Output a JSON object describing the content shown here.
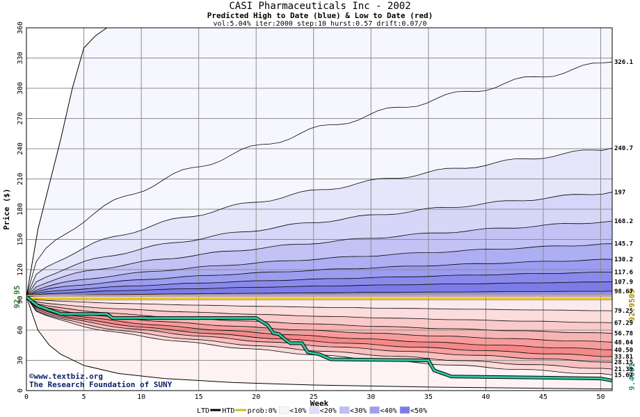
{
  "title": "CASI Pharmaceuticals Inc - 2002",
  "subtitle": "Predicted High to Date (blue) &  Low to Date (red)",
  "params": "vol:5.04% iter:2000 step:10 hurst:0.57 drift:0.07/0",
  "watermark": [
    "©www.textbiz.org",
    "The Research Foundation of SUNY"
  ],
  "colors": {
    "background": "#ffffff",
    "grid": "#8c8c8c",
    "htd_line": "#2ec7a0",
    "prob_line": "#e5b800",
    "start_label": "#2d7a36",
    "end_label": "#a88a00",
    "low_end_label": "#1f9a82"
  },
  "chart_data": {
    "type": "area",
    "xlabel": "Week",
    "ylabel": "Price ($)",
    "xlim": [
      0,
      51
    ],
    "ylim": [
      0,
      360
    ],
    "xticks": [
      0,
      5,
      10,
      15,
      20,
      25,
      30,
      35,
      40,
      45,
      50
    ],
    "yticks": [
      0,
      30,
      60,
      90,
      120,
      150,
      180,
      210,
      240,
      270,
      300,
      330,
      360
    ],
    "grid": true,
    "start_price": 92.95,
    "start_label": "92.95",
    "prob_line_value": 92.9509,
    "prob_line_label": "92.9509",
    "ltd_end_label": "9.4601",
    "high_band_labels": [
      "326.1",
      "240.7",
      "197",
      "168.2",
      "145.7",
      "130.2",
      "117.6",
      "107.9",
      "98.67"
    ],
    "high_band_values": [
      326.1,
      240.7,
      197,
      168.2,
      145.7,
      130.2,
      117.6,
      107.9,
      98.67
    ],
    "low_band_labels": [
      "79.25",
      "67.29",
      "56.78",
      "48.04",
      "40.50",
      "33.81",
      "28.15",
      "21.39",
      "15.62"
    ],
    "low_band_values": [
      79.25,
      67.29,
      56.78,
      48.04,
      40.5,
      33.81,
      28.15,
      21.39,
      15.62
    ],
    "max_envelope": [
      [
        0,
        92.95
      ],
      [
        1,
        160
      ],
      [
        2,
        205
      ],
      [
        3,
        250
      ],
      [
        4,
        300
      ],
      [
        5,
        340
      ],
      [
        6,
        352
      ],
      [
        7,
        360
      ]
    ],
    "min_envelope": [
      [
        0,
        92.95
      ],
      [
        1,
        60
      ],
      [
        2,
        45
      ],
      [
        3,
        36
      ],
      [
        5,
        25
      ],
      [
        8,
        17
      ],
      [
        12,
        12
      ],
      [
        18,
        8
      ],
      [
        25,
        5.5
      ],
      [
        35,
        3.5
      ],
      [
        51,
        1.5
      ]
    ],
    "ltd_series": {
      "name": "HTD",
      "points": [
        [
          0,
          92.95
        ],
        [
          1,
          84
        ],
        [
          2,
          80
        ],
        [
          3,
          76
        ],
        [
          7,
          76
        ],
        [
          7.5,
          72
        ],
        [
          20,
          72
        ],
        [
          21,
          65
        ],
        [
          21.5,
          57
        ],
        [
          22,
          56
        ],
        [
          22.5,
          51
        ],
        [
          23,
          47
        ],
        [
          24,
          47
        ],
        [
          24.5,
          38
        ],
        [
          25.5,
          36
        ],
        [
          26.5,
          31
        ],
        [
          35,
          30
        ],
        [
          35.5,
          20
        ],
        [
          37,
          14
        ],
        [
          44,
          13
        ],
        [
          50,
          12
        ],
        [
          51,
          10
        ]
      ]
    },
    "legend": {
      "position": "bottom",
      "items": [
        {
          "label": "LTD",
          "kind": "line",
          "color": "#000000"
        },
        {
          "label": "HTD",
          "kind": "line",
          "color": "#2ec7a0"
        },
        {
          "label": "prob:0%",
          "kind": "line",
          "color": "#e5b800"
        },
        {
          "label": "<10%",
          "kind": "swatch",
          "color": "#f6f6fe"
        },
        {
          "label": "<20%",
          "kind": "swatch",
          "color": "#dedefa"
        },
        {
          "label": "<30%",
          "kind": "swatch",
          "color": "#bebef6"
        },
        {
          "label": "<40%",
          "kind": "swatch",
          "color": "#9e9ef0"
        },
        {
          "label": "<50%",
          "kind": "swatch",
          "color": "#7c7ce8"
        }
      ]
    },
    "high_band_fills": [
      "#f6f6fe",
      "#e6e6fb",
      "#d6d6f8",
      "#c2c2f5",
      "#aeaef2",
      "#9c9cf0",
      "#8a8aed",
      "#7c7ce8",
      "#8f8fee"
    ],
    "low_band_fills": [
      "#fdebeb",
      "#fcdcdc",
      "#facaca",
      "#f8b4b4",
      "#f79c9c",
      "#f58888",
      "#f7a2a2",
      "#f9c0c0",
      "#fbdada"
    ]
  }
}
